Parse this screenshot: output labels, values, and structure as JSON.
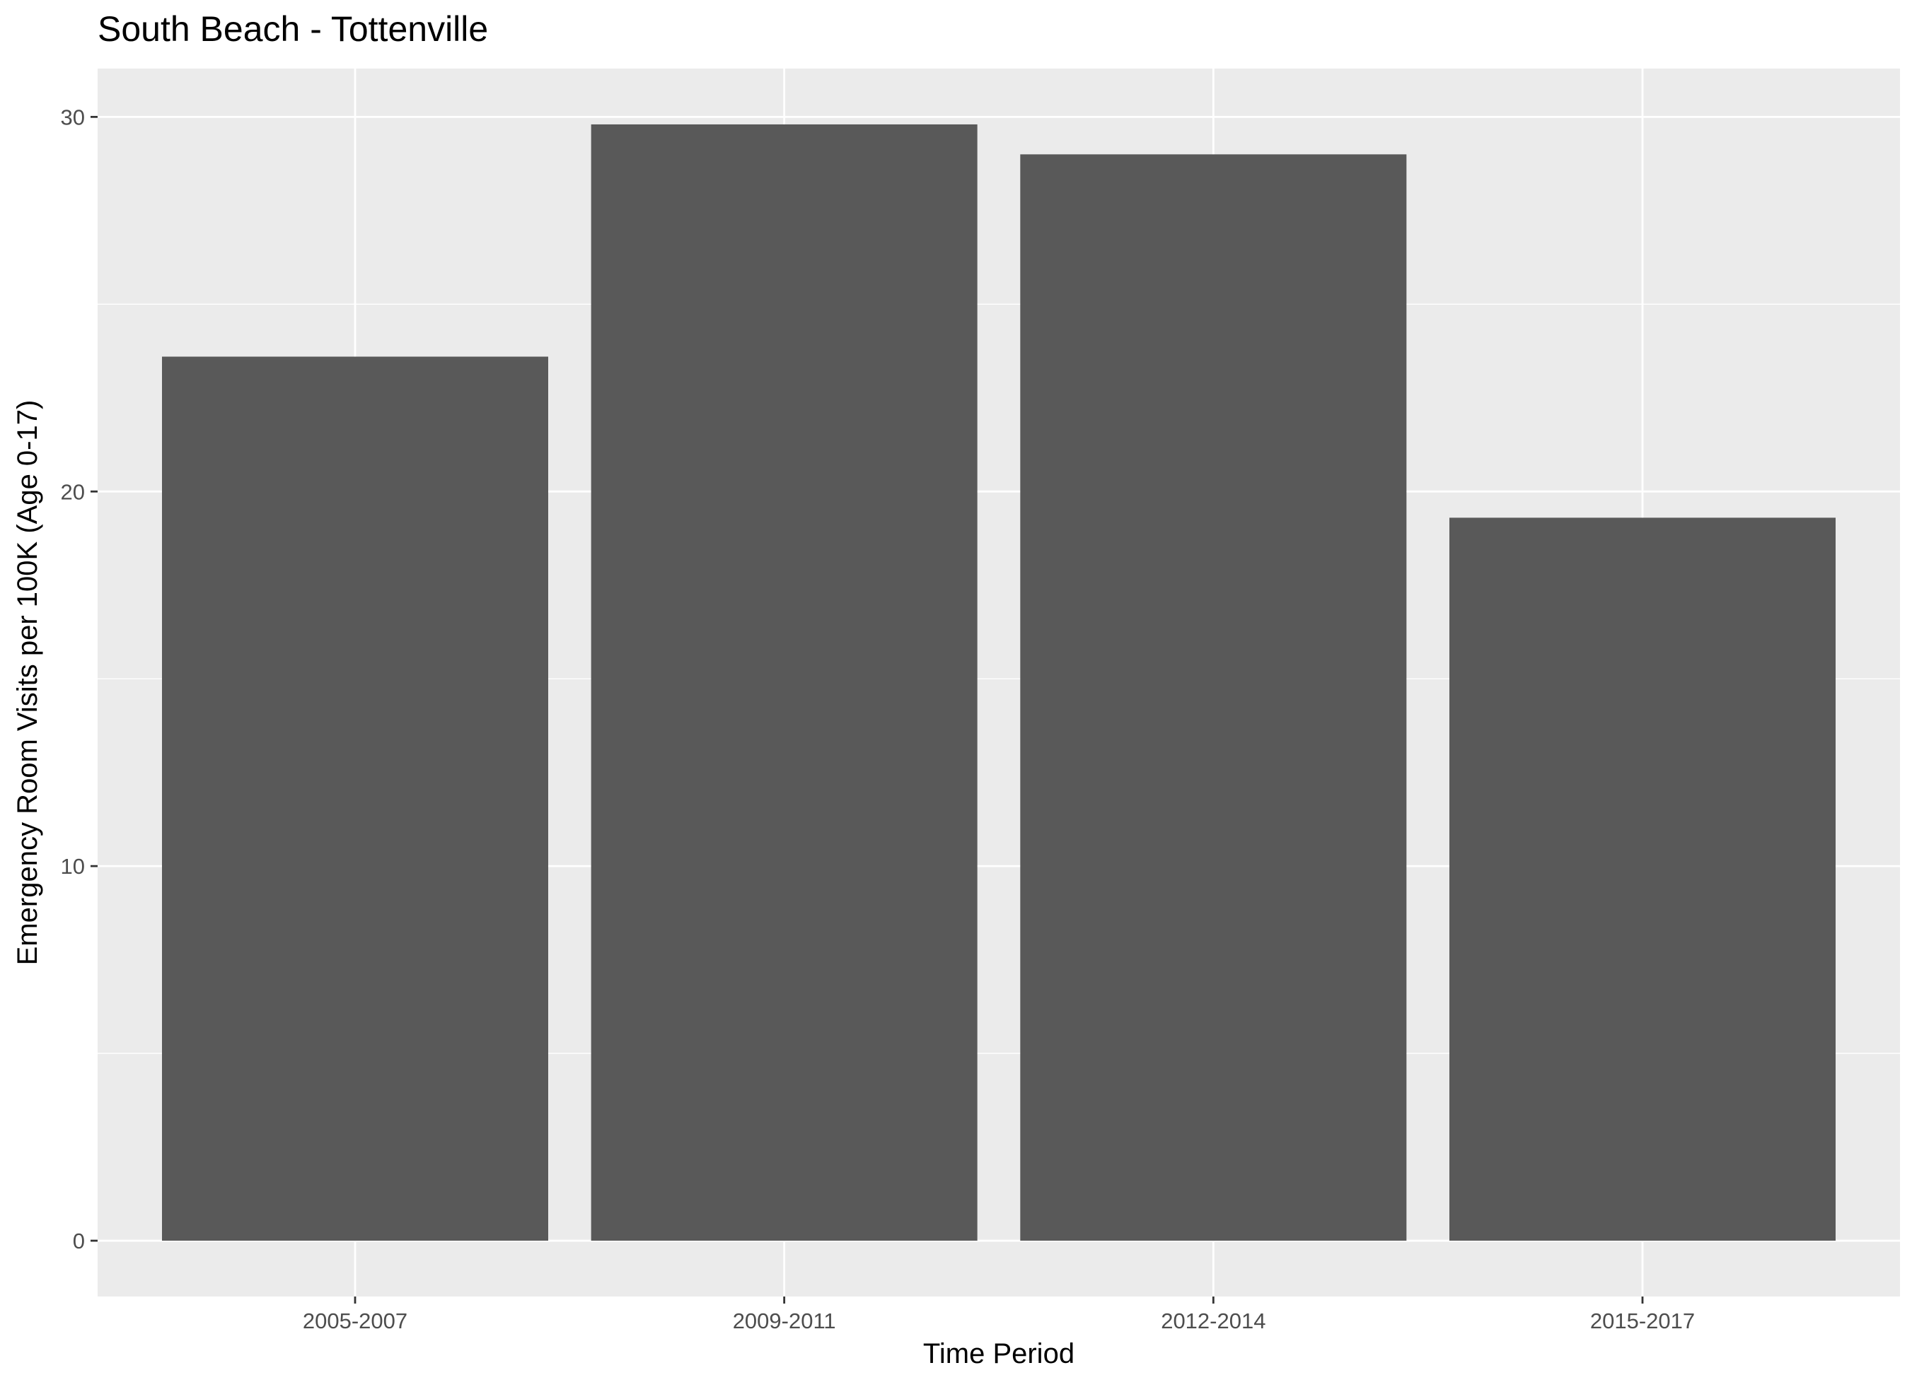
{
  "chart_data": {
    "type": "bar",
    "title": "South Beach - Tottenville",
    "xlabel": "Time Period",
    "ylabel": "Emergency Room Visits per 100K (Age 0-17)",
    "categories": [
      "2005-2007",
      "2009-2011",
      "2012-2014",
      "2015-2017"
    ],
    "values": [
      23.6,
      29.8,
      29.0,
      19.3
    ],
    "ylim": [
      -1.49,
      31.29
    ],
    "yticks": [
      0,
      10,
      20,
      30
    ],
    "ytick_labels": [
      "0",
      "10",
      "20",
      "30"
    ],
    "grid": true,
    "legend": "none"
  },
  "colors": {
    "panel_background": "#ebebeb",
    "gridline": "#ffffff",
    "bar_fill": "#595959",
    "tick_mark": "#333333",
    "tick_label": "#4d4d4d"
  }
}
